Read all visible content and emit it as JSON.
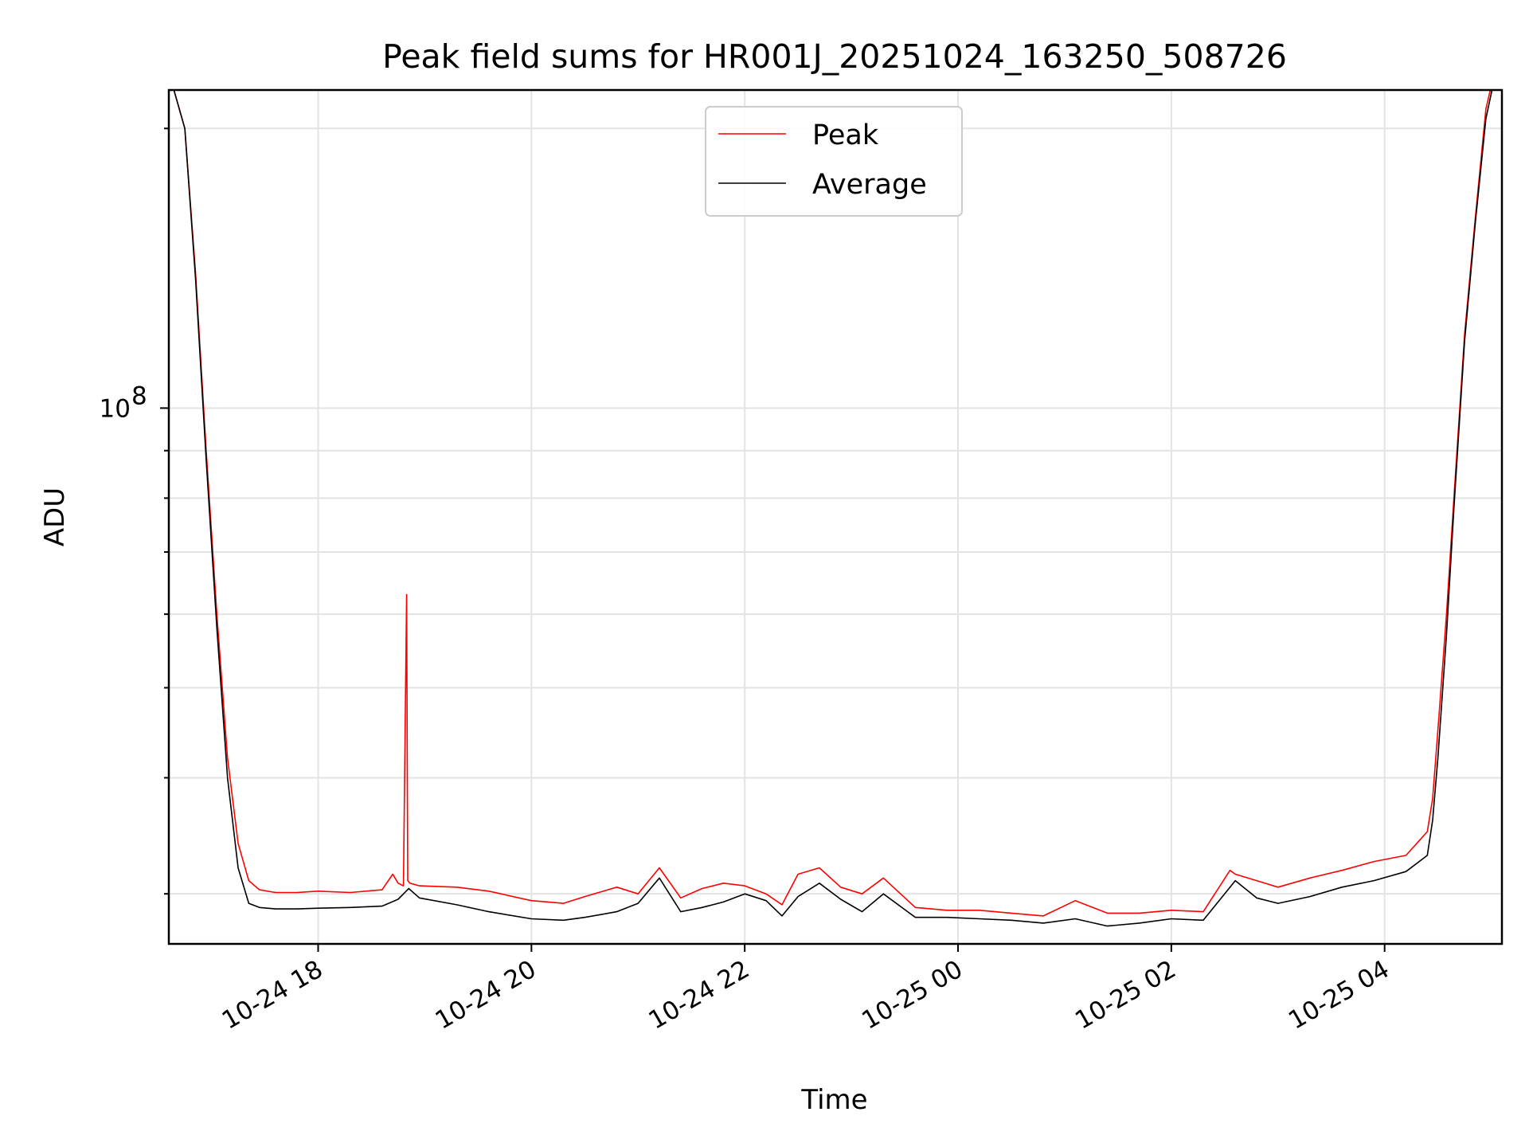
{
  "chart_data": {
    "type": "line",
    "title": "Peak field sums for HR001J_20251024_163250_508726",
    "xlabel": "Time",
    "ylabel": "ADU",
    "yscale": "log",
    "xlim_hours": [
      16.6,
      29.1
    ],
    "ylim": [
      26500000,
      220000000
    ],
    "x_ticks": [
      {
        "label": "10-24 18",
        "hour": 18
      },
      {
        "label": "10-24 20",
        "hour": 20
      },
      {
        "label": "10-24 22",
        "hour": 22
      },
      {
        "label": "10-25 00",
        "hour": 24
      },
      {
        "label": "10-25 02",
        "hour": 26
      },
      {
        "label": "10-25 04",
        "hour": 28
      }
    ],
    "y_ticks": [
      {
        "label": "10",
        "exponent": "8",
        "value": 100000000
      }
    ],
    "y_minor_ticks": [
      30000000,
      40000000,
      50000000,
      60000000,
      70000000,
      80000000,
      90000000,
      200000000
    ],
    "grid": true,
    "legend": {
      "position": "top-center",
      "entries": [
        "Peak",
        "Average"
      ]
    },
    "series": [
      {
        "name": "Peak",
        "color": "#ff0000",
        "x_hours": [
          16.6,
          16.75,
          16.85,
          16.95,
          17.05,
          17.15,
          17.25,
          17.35,
          17.45,
          17.6,
          17.8,
          18.0,
          18.3,
          18.6,
          18.7,
          18.75,
          18.8,
          18.83,
          18.84,
          18.86,
          18.95,
          19.3,
          19.6,
          20.0,
          20.3,
          20.5,
          20.8,
          21.0,
          21.2,
          21.4,
          21.6,
          21.8,
          22.0,
          22.2,
          22.35,
          22.5,
          22.7,
          22.9,
          23.1,
          23.3,
          23.6,
          23.9,
          24.2,
          24.5,
          24.8,
          25.1,
          25.4,
          25.7,
          26.0,
          26.3,
          26.55,
          26.6,
          26.8,
          27.0,
          27.3,
          27.6,
          27.9,
          28.2,
          28.4,
          28.45,
          28.5,
          28.58,
          28.65,
          28.75,
          28.85,
          28.95,
          29.05,
          29.1
        ],
        "values": [
          230000000,
          200000000,
          140000000,
          90000000,
          60000000,
          42000000,
          34000000,
          31000000,
          30300000,
          30100000,
          30100000,
          30200000,
          30100000,
          30300000,
          31500000,
          30800000,
          30600000,
          63000000,
          31000000,
          30800000,
          30600000,
          30500000,
          30200000,
          29500000,
          29300000,
          29800000,
          30500000,
          30000000,
          32000000,
          29700000,
          30400000,
          30800000,
          30600000,
          30000000,
          29200000,
          31500000,
          32000000,
          30500000,
          30000000,
          31200000,
          29000000,
          28800000,
          28800000,
          28600000,
          28400000,
          29500000,
          28600000,
          28600000,
          28800000,
          28700000,
          31800000,
          31500000,
          31000000,
          30500000,
          31200000,
          31800000,
          32500000,
          33000000,
          35000000,
          38000000,
          45000000,
          60000000,
          80000000,
          120000000,
          160000000,
          210000000,
          235000000,
          240000000
        ]
      },
      {
        "name": "Average",
        "color": "#000000",
        "x_hours": [
          16.6,
          16.75,
          16.85,
          16.95,
          17.05,
          17.15,
          17.25,
          17.35,
          17.45,
          17.6,
          17.8,
          18.0,
          18.3,
          18.6,
          18.75,
          18.85,
          18.95,
          19.3,
          19.6,
          20.0,
          20.3,
          20.5,
          20.8,
          21.0,
          21.2,
          21.4,
          21.6,
          21.8,
          22.0,
          22.2,
          22.35,
          22.5,
          22.7,
          22.9,
          23.1,
          23.3,
          23.6,
          23.9,
          24.2,
          24.5,
          24.8,
          25.1,
          25.4,
          25.7,
          26.0,
          26.3,
          26.6,
          26.8,
          27.0,
          27.3,
          27.6,
          27.9,
          28.2,
          28.4,
          28.45,
          28.5,
          28.58,
          28.65,
          28.75,
          28.85,
          28.95,
          29.05,
          29.1
        ],
        "values": [
          230000000,
          200000000,
          138000000,
          88000000,
          58000000,
          40000000,
          32000000,
          29300000,
          29000000,
          28900000,
          28900000,
          28950000,
          29000000,
          29100000,
          29600000,
          30400000,
          29700000,
          29200000,
          28700000,
          28200000,
          28100000,
          28300000,
          28700000,
          29300000,
          31200000,
          28700000,
          29000000,
          29400000,
          30000000,
          29500000,
          28400000,
          29800000,
          30800000,
          29600000,
          28700000,
          30000000,
          28300000,
          28300000,
          28200000,
          28100000,
          27900000,
          28200000,
          27700000,
          27900000,
          28200000,
          28100000,
          31000000,
          29700000,
          29300000,
          29800000,
          30500000,
          31000000,
          31700000,
          33000000,
          36000000,
          42000000,
          57000000,
          78000000,
          118000000,
          158000000,
          205000000,
          232000000,
          240000000
        ]
      }
    ]
  }
}
